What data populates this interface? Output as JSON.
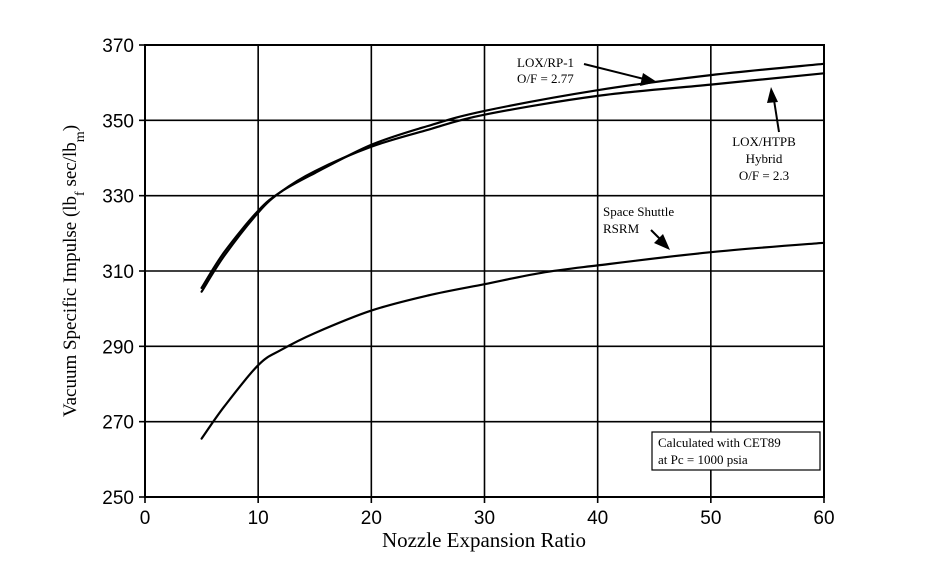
{
  "chart_data": {
    "type": "line",
    "title": "",
    "xlabel": "Nozzle Expansion Ratio",
    "ylabel": {
      "prefix": "Vacuum Specific Impulse (lb",
      "sub1": "f",
      "middle": " sec/lb",
      "sub2": "m",
      "suffix": ")"
    },
    "xlim": [
      0,
      60
    ],
    "ylim": [
      250,
      370
    ],
    "xticks": [
      "0",
      "10",
      "20",
      "30",
      "40",
      "50",
      "60"
    ],
    "yticks": [
      "250",
      "270",
      "290",
      "310",
      "330",
      "350",
      "370"
    ],
    "grid": true,
    "series": [
      {
        "name": "LOX/RP-1",
        "x": [
          5,
          7,
          10,
          12,
          15,
          20,
          25,
          30,
          40,
          50,
          60
        ],
        "y": [
          305.5,
          315,
          326,
          331,
          336,
          343.5,
          348.5,
          352.5,
          358,
          362,
          365
        ]
      },
      {
        "name": "LOX/HTPB Hybrid",
        "x": [
          5,
          7,
          10,
          12,
          15,
          20,
          25,
          30,
          40,
          50,
          60
        ],
        "y": [
          304.5,
          314,
          325.5,
          331,
          336.5,
          343,
          347.5,
          351.5,
          356.5,
          359.5,
          362.5
        ]
      },
      {
        "name": "Space Shuttle RSRM",
        "x": [
          5,
          7,
          10,
          12,
          15,
          20,
          25,
          30,
          35,
          40,
          50,
          60
        ],
        "y": [
          265.5,
          274,
          285,
          289,
          293.5,
          299.5,
          303.5,
          306.5,
          309.5,
          311.5,
          315,
          317.5
        ]
      }
    ],
    "annotations": {
      "rp1": [
        "LOX/RP-1",
        "O/F = 2.77"
      ],
      "htpb": [
        "LOX/HTPB",
        "Hybrid",
        "O/F = 2.3"
      ],
      "rsrm": [
        "Space Shuttle",
        "RSRM"
      ],
      "note": [
        "Calculated with CET89",
        "at Pc = 1000 psia"
      ]
    }
  }
}
